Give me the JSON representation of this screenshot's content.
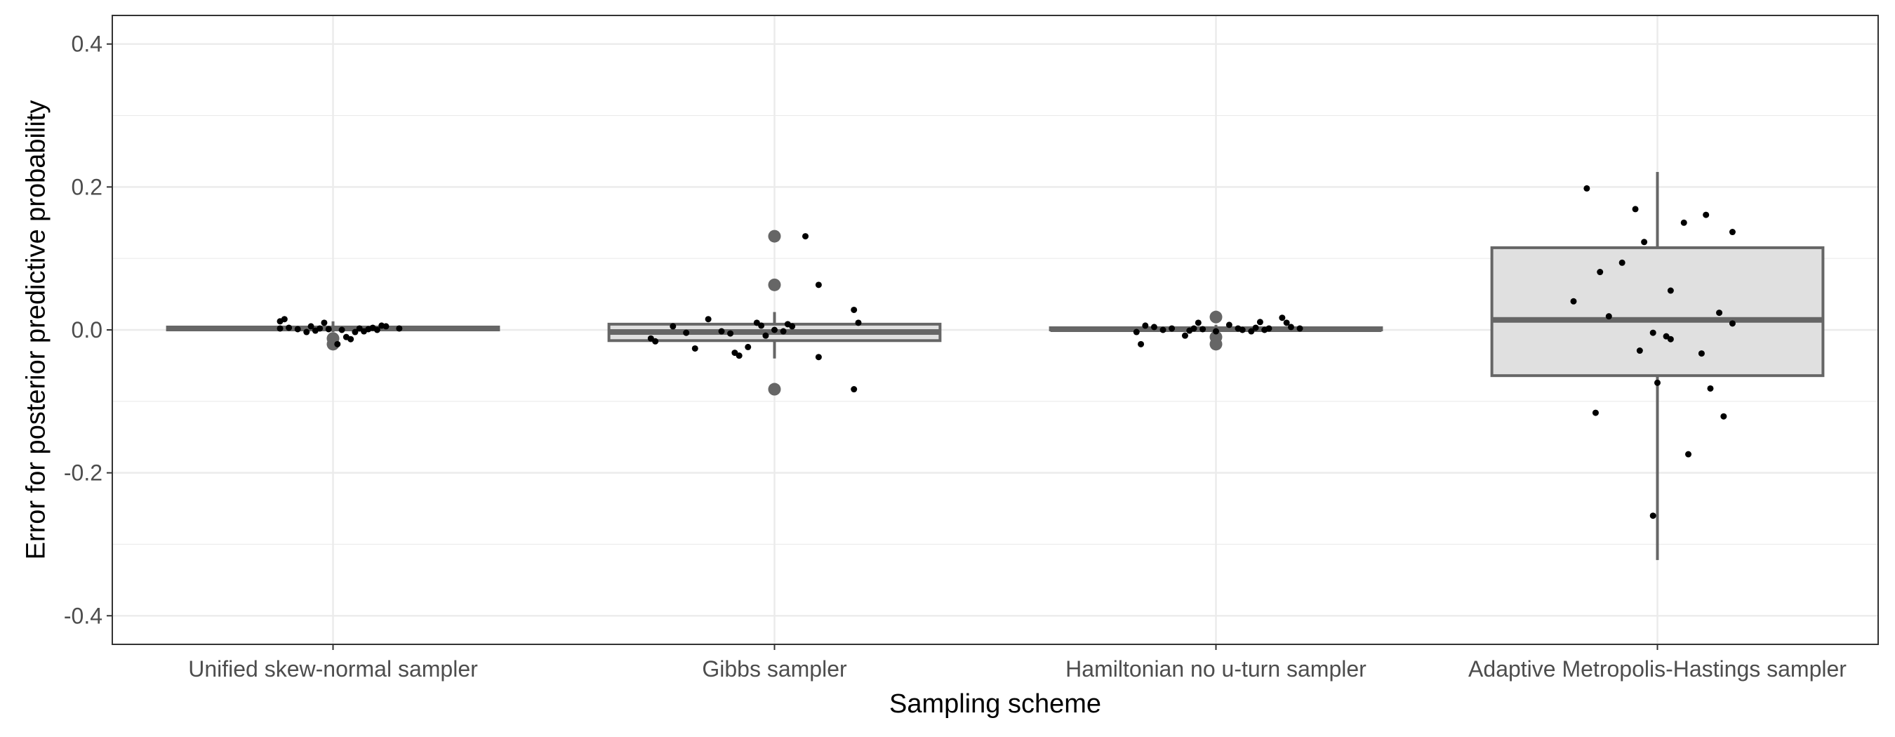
{
  "chart_data": {
    "type": "box",
    "title": "",
    "xlabel": "Sampling scheme",
    "ylabel": "Error for posterior predictive probability",
    "ylim": [
      -0.44,
      0.44
    ],
    "yticks": [
      -0.4,
      -0.2,
      0.0,
      0.2,
      0.4
    ],
    "ytick_labels": [
      "-0.4",
      "-0.2",
      "0.0",
      "0.2",
      "0.4"
    ],
    "grid": true,
    "legend": "none",
    "colors": {
      "box_fill": "#e0e0e0",
      "box_stroke": "#666666",
      "point": "#000000",
      "outlier": "#666666",
      "grid": "#ebebeb",
      "panel_border": "#333333"
    },
    "categories": [
      "Unified skew-normal sampler",
      "Gibbs sampler",
      "Hamiltonian no u-turn sampler",
      "Adaptive Metropolis-Hastings sampler"
    ],
    "boxes": [
      {
        "q1": 0.0,
        "median": 0.002,
        "q3": 0.004,
        "whisker_low": -0.003,
        "whisker_high": 0.012,
        "outliers": [
          -0.012,
          -0.02
        ]
      },
      {
        "q1": -0.015,
        "median": -0.003,
        "q3": 0.008,
        "whisker_low": -0.04,
        "whisker_high": 0.025,
        "outliers": [
          0.131,
          0.063,
          -0.083
        ]
      },
      {
        "q1": 0.0,
        "median": 0.001,
        "q3": 0.003,
        "whisker_low": -0.003,
        "whisker_high": 0.007,
        "outliers": [
          0.018,
          -0.01,
          -0.02
        ]
      },
      {
        "q1": -0.064,
        "median": 0.014,
        "q3": 0.115,
        "whisker_low": -0.322,
        "whisker_high": 0.221,
        "outliers": []
      }
    ],
    "points": [
      [
        [
          -0.12,
          0.012
        ],
        [
          -0.11,
          0.015
        ],
        [
          -0.1,
          0.003
        ],
        [
          -0.08,
          0.001
        ],
        [
          -0.06,
          -0.003
        ],
        [
          -0.05,
          0.005
        ],
        [
          -0.04,
          -0.001
        ],
        [
          -0.03,
          0.002
        ],
        [
          -0.02,
          0.01
        ],
        [
          -0.01,
          0.001
        ],
        [
          0.01,
          -0.02
        ],
        [
          0.02,
          0.0
        ],
        [
          0.04,
          -0.013
        ],
        [
          0.05,
          -0.003
        ],
        [
          0.06,
          0.002
        ],
        [
          0.07,
          -0.002
        ],
        [
          0.08,
          0.001
        ],
        [
          0.09,
          0.003
        ],
        [
          0.1,
          0.0
        ],
        [
          0.11,
          0.006
        ],
        [
          0.12,
          0.005
        ],
        [
          0.15,
          0.002
        ],
        [
          -0.12,
          0.002
        ],
        [
          0.03,
          -0.01
        ]
      ],
      [
        [
          -0.28,
          -0.012
        ],
        [
          -0.27,
          -0.016
        ],
        [
          -0.23,
          0.005
        ],
        [
          -0.2,
          -0.004
        ],
        [
          -0.18,
          -0.026
        ],
        [
          -0.15,
          0.015
        ],
        [
          -0.12,
          -0.002
        ],
        [
          -0.1,
          -0.005
        ],
        [
          -0.09,
          -0.032
        ],
        [
          -0.08,
          -0.036
        ],
        [
          -0.06,
          -0.024
        ],
        [
          -0.04,
          0.01
        ],
        [
          -0.03,
          0.006
        ],
        [
          -0.02,
          -0.008
        ],
        [
          0.0,
          0.0
        ],
        [
          0.02,
          -0.002
        ],
        [
          0.03,
          0.008
        ],
        [
          0.04,
          0.005
        ],
        [
          0.07,
          0.131
        ],
        [
          0.1,
          0.063
        ],
        [
          0.18,
          0.028
        ],
        [
          0.19,
          0.01
        ],
        [
          0.18,
          -0.083
        ],
        [
          0.1,
          -0.038
        ]
      ],
      [
        [
          -0.18,
          -0.003
        ],
        [
          -0.17,
          -0.02
        ],
        [
          -0.16,
          0.006
        ],
        [
          -0.14,
          0.004
        ],
        [
          -0.12,
          0.0
        ],
        [
          -0.1,
          0.002
        ],
        [
          -0.07,
          -0.008
        ],
        [
          -0.06,
          -0.001
        ],
        [
          -0.04,
          0.01
        ],
        [
          -0.03,
          0.001
        ],
        [
          0.0,
          -0.002
        ],
        [
          0.03,
          0.007
        ],
        [
          0.05,
          0.002
        ],
        [
          0.06,
          0.0
        ],
        [
          0.08,
          -0.002
        ],
        [
          0.09,
          0.003
        ],
        [
          0.1,
          0.011
        ],
        [
          0.12,
          0.002
        ],
        [
          0.15,
          0.017
        ],
        [
          0.16,
          0.01
        ],
        [
          0.17,
          0.004
        ],
        [
          0.19,
          0.002
        ],
        [
          0.11,
          0.0
        ],
        [
          -0.05,
          0.002
        ]
      ],
      [
        [
          -0.19,
          0.04
        ],
        [
          -0.16,
          0.198
        ],
        [
          -0.14,
          -0.116
        ],
        [
          -0.13,
          0.081
        ],
        [
          -0.11,
          0.019
        ],
        [
          -0.08,
          0.094
        ],
        [
          -0.05,
          0.169
        ],
        [
          -0.04,
          -0.029
        ],
        [
          -0.03,
          0.123
        ],
        [
          -0.01,
          -0.004
        ],
        [
          0.0,
          -0.074
        ],
        [
          0.02,
          -0.009
        ],
        [
          0.03,
          -0.013
        ],
        [
          0.03,
          0.055
        ],
        [
          0.06,
          0.15
        ],
        [
          0.1,
          -0.033
        ],
        [
          0.11,
          0.161
        ],
        [
          0.12,
          -0.082
        ],
        [
          0.14,
          0.024
        ],
        [
          0.15,
          -0.121
        ],
        [
          0.17,
          0.009
        ],
        [
          0.17,
          0.137
        ],
        [
          0.07,
          -0.174
        ],
        [
          -0.01,
          -0.26
        ]
      ]
    ]
  }
}
